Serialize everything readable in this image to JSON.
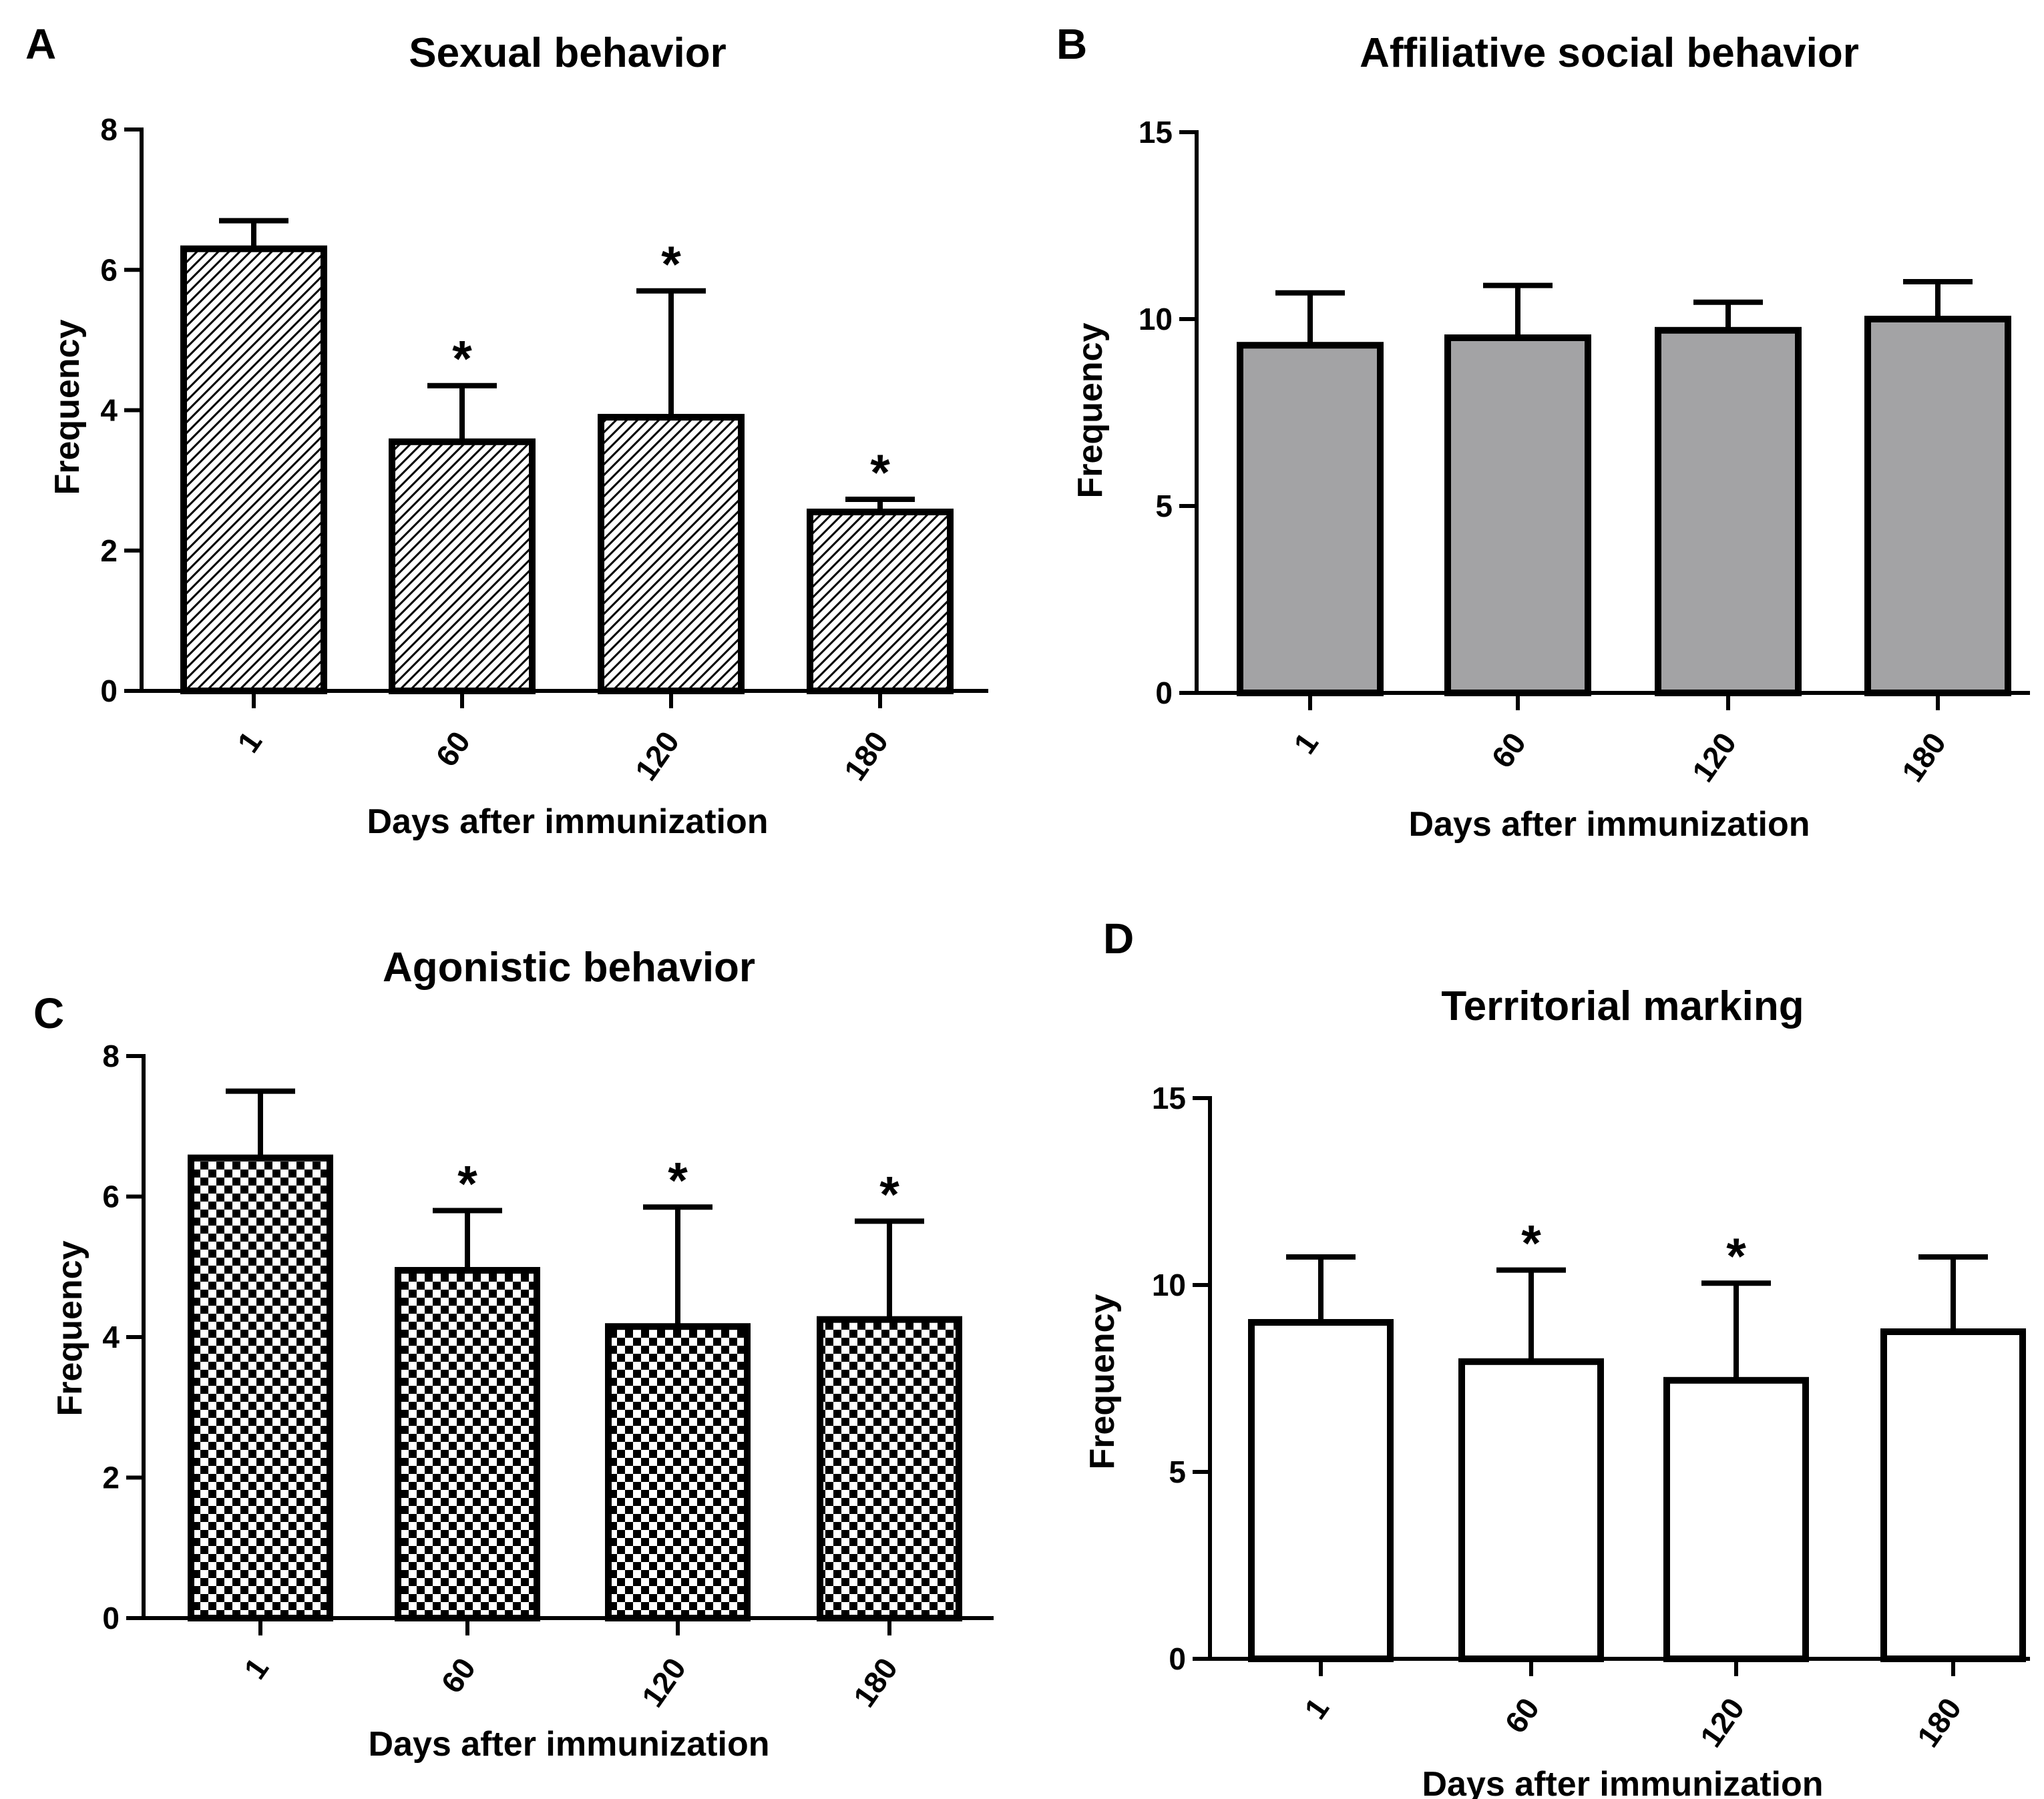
{
  "colors": {
    "ink": "#000000",
    "gray_fill": "#a3a3a5",
    "white_fill": "#ffffff"
  },
  "chart_data": [
    {
      "panel": "A",
      "type": "bar",
      "title": "Sexual behavior",
      "xlabel": "Days after immunization",
      "ylabel": "Frequency",
      "ylim": [
        0,
        8
      ],
      "yticks": [
        0,
        2,
        4,
        6,
        8
      ],
      "categories": [
        "1",
        "60",
        "120",
        "180"
      ],
      "values": [
        6.3,
        3.55,
        3.9,
        2.55
      ],
      "errors": [
        0.4,
        0.8,
        1.8,
        0.18
      ],
      "significant": [
        false,
        true,
        true,
        true
      ],
      "marker": "*",
      "fill": "diagonal-hatch"
    },
    {
      "panel": "B",
      "type": "bar",
      "title": "Affiliative social behavior",
      "xlabel": "Days after immunization",
      "ylabel": "Frequency",
      "ylim": [
        0,
        15
      ],
      "yticks": [
        0,
        5,
        10,
        15
      ],
      "categories": [
        "1",
        "60",
        "120",
        "180"
      ],
      "values": [
        9.3,
        9.5,
        9.7,
        10.0
      ],
      "errors": [
        1.4,
        1.4,
        0.75,
        1.0
      ],
      "significant": [
        false,
        false,
        false,
        false
      ],
      "marker": "*",
      "fill": "gray"
    },
    {
      "panel": "C",
      "type": "bar",
      "title": "Agonistic behavior",
      "xlabel": "Days after immunization",
      "ylabel": "Frequency",
      "ylim": [
        0,
        8
      ],
      "yticks": [
        0,
        2,
        4,
        6,
        8
      ],
      "categories": [
        "1",
        "60",
        "120",
        "180"
      ],
      "values": [
        6.55,
        4.95,
        4.15,
        4.25
      ],
      "errors": [
        0.95,
        0.85,
        1.7,
        1.4
      ],
      "significant": [
        false,
        true,
        true,
        true
      ],
      "marker": "*",
      "fill": "checker"
    },
    {
      "panel": "D",
      "type": "bar",
      "title": "Territorial marking",
      "xlabel": "Days after immunization",
      "ylabel": "Frequency",
      "ylim": [
        0,
        15
      ],
      "yticks": [
        0,
        5,
        10,
        15
      ],
      "categories": [
        "1",
        "60",
        "120",
        "180"
      ],
      "values": [
        9.0,
        7.95,
        7.45,
        8.75
      ],
      "errors": [
        1.75,
        2.45,
        2.6,
        2.0
      ],
      "significant": [
        false,
        true,
        true,
        false
      ],
      "marker": "*",
      "fill": "white"
    }
  ]
}
